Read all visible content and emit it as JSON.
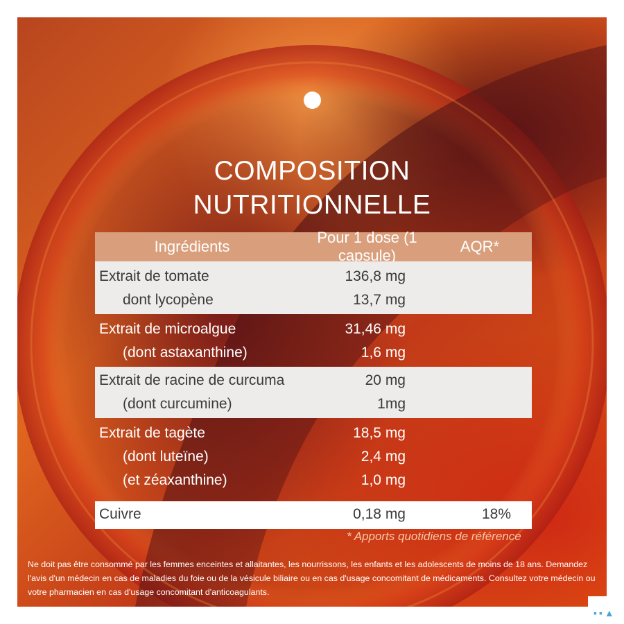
{
  "title": {
    "line1": "COMPOSITION",
    "line2": "NUTRITIONNELLE"
  },
  "table": {
    "headers": {
      "ingredients": "Ingrédients",
      "dose": "Pour 1 dose (1 capsule)",
      "aqr": "AQR*"
    },
    "groups": [
      {
        "style": "light",
        "rows": [
          {
            "name": "Extrait de tomate",
            "value": "136,8 mg",
            "aqr": ""
          },
          {
            "name": "dont lycopène",
            "value": "13,7 mg",
            "aqr": ""
          }
        ]
      },
      {
        "style": "dark",
        "rows": [
          {
            "name": "Extrait de microalgue",
            "value": "31,46 mg",
            "aqr": ""
          },
          {
            "name": "(dont astaxanthine)",
            "value": "1,6 mg",
            "aqr": ""
          }
        ]
      },
      {
        "style": "light",
        "rows": [
          {
            "name": "Extrait de racine de curcuma",
            "value": "20 mg",
            "aqr": ""
          },
          {
            "name": "(dont curcumine)",
            "value": "1mg",
            "aqr": ""
          }
        ]
      },
      {
        "style": "dark",
        "rows": [
          {
            "name": "Extrait de tagète",
            "value": "18,5 mg",
            "aqr": ""
          },
          {
            "name": "(dont luteïne)",
            "value": "2,4 mg",
            "aqr": ""
          },
          {
            "name": "(et zéaxanthine)",
            "value": "1,0 mg",
            "aqr": ""
          }
        ]
      },
      {
        "style": "white",
        "rows": [
          {
            "name": "Cuivre",
            "value": "0,18 mg",
            "aqr": "18%"
          }
        ]
      }
    ],
    "footnote": "* Apports quotidiens de référence"
  },
  "disclaimer": "Ne doit pas être consommé par les femmes enceintes et allaitantes, les nourrissons, les enfants et les adolescents de moins de 18 ans. Demandez l'avis d'un médecin en cas de maladies du foie ou de la vésicule biliaire ou en cas d'usage concomitant de médicaments. Consultez votre médecin ou votre pharmacien en cas d'usage concomitant d'anticoagulants.",
  "colors": {
    "background_orange": "#e0661f",
    "dark_swirl": "#6e1419",
    "header_band": "#d99f7c",
    "light_row": "#eeecea"
  }
}
